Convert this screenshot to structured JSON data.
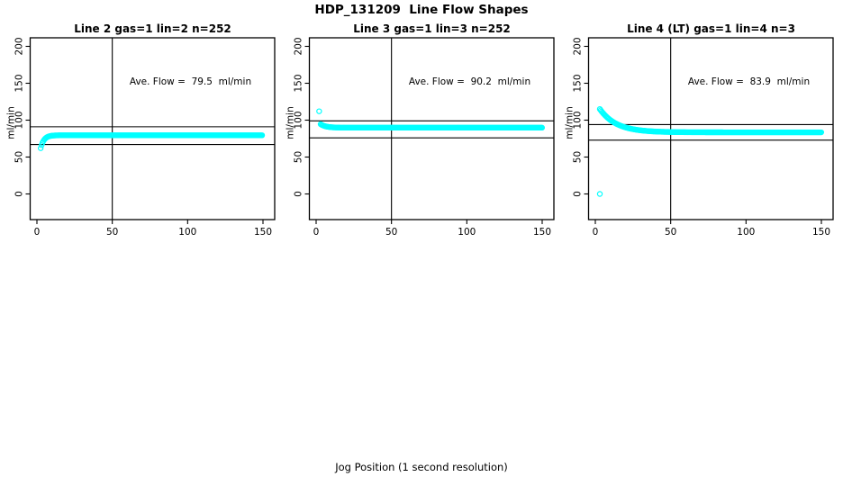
{
  "title": "HDP_131209  Line Flow Shapes",
  "xlabel": "Jog Position (1 second resolution)",
  "ylabel": "ml/min",
  "colors": {
    "marker": "#00FFFF",
    "reference_line": "#000000",
    "background": "#FFFFFF"
  },
  "chart_data": {
    "type": "scatter",
    "x_ticks": [
      0,
      50,
      100,
      150
    ],
    "y_ticks": [
      0,
      50,
      100,
      150,
      200
    ],
    "x_range_shown": [
      0,
      157
    ],
    "y_range_shown": [
      0,
      200
    ],
    "vline_x": 50,
    "grid": false,
    "marker": "open-circle",
    "panels": [
      {
        "title": "Line 2 gas=1 lin=2 n=252",
        "annotation": "Ave. Flow =  79.5  ml/min",
        "ave_flow_ml_min": 79.5,
        "n_label": 252,
        "hlines": [
          91,
          67
        ],
        "series": {
          "shape": "rise-to-plateau",
          "start_x": 2.5,
          "end_x": 150,
          "step": 0.59,
          "start_y": 62,
          "plateau_y": 79.5,
          "decay_tau": 2.2
        },
        "outlier_points": []
      },
      {
        "title": "Line 3 gas=1 lin=3 n=252",
        "annotation": "Ave. Flow =  90.2  ml/min",
        "ave_flow_ml_min": 90.2,
        "n_label": 252,
        "hlines": [
          99,
          76
        ],
        "series": {
          "shape": "fall-to-plateau",
          "start_x": 3,
          "end_x": 150,
          "step": 0.59,
          "start_y": 94.5,
          "plateau_y": 89.8,
          "decay_tau": 3.5
        },
        "outlier_points": [
          [
            2,
            112
          ]
        ]
      },
      {
        "title": "Line 4 (LT) gas=1 lin=4 n=3",
        "annotation": "Ave. Flow =  83.9  ml/min",
        "ave_flow_ml_min": 83.9,
        "n_label": 3,
        "hlines": [
          94,
          73
        ],
        "series": {
          "shape": "fall-to-plateau",
          "start_x": 3,
          "end_x": 150,
          "step": 0.59,
          "start_y": 115,
          "plateau_y": 83.5,
          "decay_tau": 11
        },
        "outlier_points": [
          [
            3,
            0
          ]
        ]
      }
    ]
  }
}
